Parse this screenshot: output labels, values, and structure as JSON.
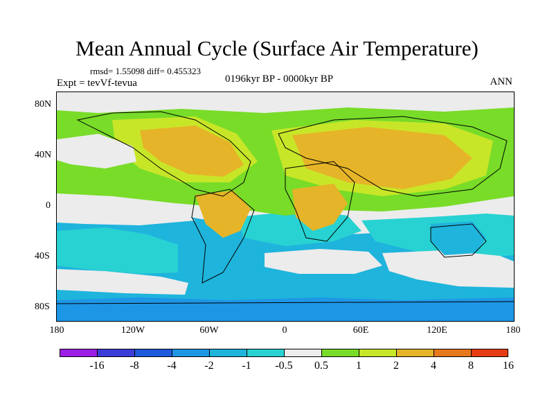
{
  "title": "Mean Annual Cycle (Surface Air Temperature)",
  "stats": "rmsd= 1.55098 diff= 0.455323",
  "experiment": "Expt = tevVf-tevua",
  "period": "0196kyr BP - 0000kyr BP",
  "season": "ANN",
  "lat_labels": [
    "80N",
    "40N",
    "0",
    "40S",
    "80S"
  ],
  "lon_labels": [
    "180",
    "120W",
    "60W",
    "0",
    "60E",
    "120E",
    "180"
  ],
  "colorbar": {
    "labels": [
      "-16",
      "-8",
      "-4",
      "-2",
      "-1",
      "-0.5",
      "0.5",
      "1",
      "2",
      "4",
      "8",
      "16"
    ],
    "colors": [
      "#9c1ee6",
      "#3c3cd8",
      "#1e5adc",
      "#1e96e6",
      "#1eb4dc",
      "#28d2d2",
      "#ececec",
      "#78dc28",
      "#c8e628",
      "#e6b428",
      "#e6781e",
      "#e63c14"
    ]
  },
  "palette": {
    "neutral": "#ececec",
    "warm1": "#78dc28",
    "warm2": "#c8e628",
    "warm4": "#e6b428",
    "cool1": "#28d2d2",
    "cool2": "#1eb4dc",
    "cool3": "#1e96e6"
  }
}
